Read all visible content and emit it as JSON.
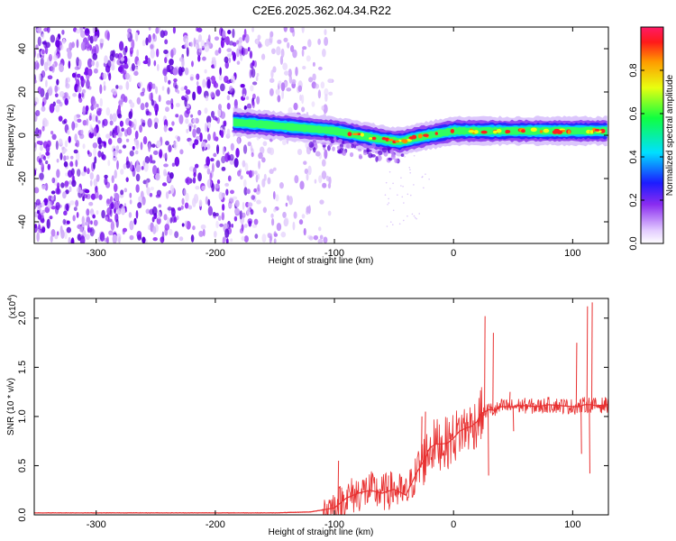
{
  "title": "C2E6.2025.362.04.34.R22",
  "chart_data": [
    {
      "type": "heatmap",
      "name": "spectrogram",
      "xlabel": "Height of straight line (km)",
      "ylabel": "Frequency (Hz)",
      "xlim": [
        -352,
        130
      ],
      "ylim": [
        -50,
        50
      ],
      "xticks": [
        -300,
        -200,
        -100,
        0,
        100
      ],
      "yticks": [
        -40,
        -20,
        0,
        20,
        40
      ],
      "xticklabels": [
        "-300",
        "-200",
        "-100",
        "0",
        "100"
      ],
      "yticklabels": [
        "-40",
        "-20",
        "0",
        "20",
        "40"
      ],
      "noise_region_x": [
        -352,
        -120
      ],
      "signal_ridge": {
        "x": [
          -185,
          -160,
          -140,
          -120,
          -100,
          -80,
          -60,
          -45,
          -30,
          -10,
          0,
          20,
          50,
          80,
          110,
          130
        ],
        "freq": [
          6,
          5,
          4,
          3,
          2,
          0,
          -2,
          -3,
          -1,
          1,
          2,
          2,
          2,
          2,
          2,
          2
        ]
      },
      "colorbar": {
        "label": "Normalized spectral amplitude",
        "range": [
          0.0,
          1.0
        ],
        "ticks": [
          0.0,
          0.2,
          0.4,
          0.6,
          0.8
        ],
        "ticklabels": [
          "0.0",
          "0.2",
          "0.4",
          "0.6",
          "0.8"
        ]
      }
    },
    {
      "type": "line",
      "name": "snr",
      "xlabel": "Height of straight line (km)",
      "ylabel": "SNR (10 * v/v)",
      "scale_label_base": "(x10",
      "scale_label_exp": "4",
      "scale_label_end": ")",
      "xlim": [
        -352,
        130
      ],
      "ylim": [
        0,
        2.2
      ],
      "xticks": [
        -300,
        -200,
        -100,
        0,
        100
      ],
      "yticks": [
        0.0,
        0.5,
        1.0,
        1.5,
        2.0
      ],
      "xticklabels": [
        "-300",
        "-200",
        "-100",
        "0",
        "100"
      ],
      "yticklabels": [
        "0.0",
        "0.5",
        "1.0",
        "1.5",
        "2.0"
      ],
      "color": "#e83030",
      "series": [
        {
          "name": "SNR",
          "x": [
            -352,
            -300,
            -250,
            -200,
            -150,
            -120,
            -110,
            -100,
            -90,
            -80,
            -70,
            -60,
            -50,
            -40,
            -30,
            -25,
            -20,
            -15,
            -10,
            -5,
            0,
            5,
            10,
            15,
            20,
            22,
            25,
            30,
            35,
            40,
            45,
            50,
            55,
            60,
            70,
            80,
            90,
            100,
            105,
            110,
            115,
            120,
            130
          ],
          "y": [
            0.02,
            0.02,
            0.02,
            0.02,
            0.02,
            0.03,
            0.05,
            0.07,
            0.17,
            0.22,
            0.25,
            0.22,
            0.26,
            0.2,
            0.45,
            0.55,
            0.68,
            0.72,
            0.72,
            0.73,
            0.78,
            0.85,
            0.88,
            0.9,
            0.95,
            1.02,
            1.04,
            1.07,
            1.06,
            1.1,
            1.1,
            1.1,
            1.11,
            1.11,
            1.1,
            1.12,
            1.11,
            1.1,
            1.1,
            1.12,
            1.12,
            1.11,
            1.12
          ]
        }
      ],
      "spikes": [
        {
          "x": -97,
          "y": 0.55
        },
        {
          "x": -55,
          "y": 0.4
        },
        {
          "x": -27,
          "y": 1.0
        },
        {
          "x": -24,
          "y": 1.05
        },
        {
          "x": 26,
          "y": 2.02
        },
        {
          "x": 29,
          "y": 0.4
        },
        {
          "x": 33,
          "y": 1.85
        },
        {
          "x": 47,
          "y": 1.25
        },
        {
          "x": 50,
          "y": 0.85
        },
        {
          "x": 103,
          "y": 1.75
        },
        {
          "x": 107,
          "y": 0.62
        },
        {
          "x": 112,
          "y": 2.12
        },
        {
          "x": 114,
          "y": 0.42
        },
        {
          "x": 116,
          "y": 2.16
        }
      ]
    }
  ]
}
